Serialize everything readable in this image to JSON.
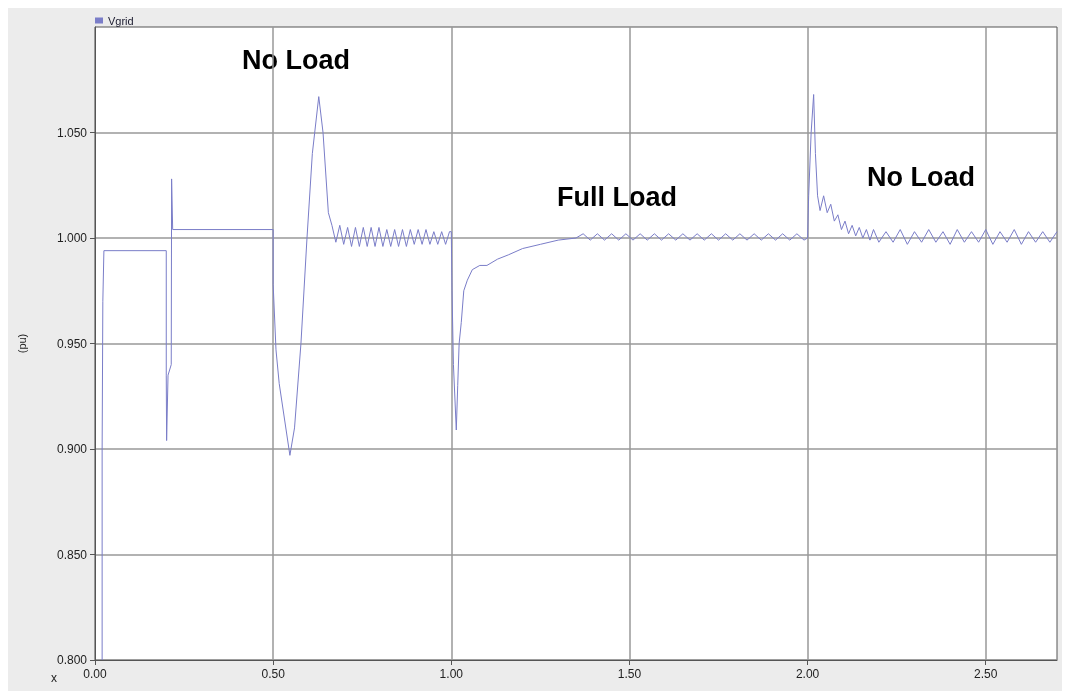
{
  "chart_data": {
    "type": "line",
    "xlabel": "x",
    "ylabel": "(pu)",
    "xlim": [
      0,
      2.7
    ],
    "ylim": [
      0.8,
      1.1
    ],
    "xticks": [
      {
        "value": 0,
        "label": "0.00"
      },
      {
        "value": 0.5,
        "label": "0.50"
      },
      {
        "value": 1,
        "label": "1.00"
      },
      {
        "value": 1.5,
        "label": "1.50"
      },
      {
        "value": 2,
        "label": "2.00"
      },
      {
        "value": 2.5,
        "label": "2.50"
      }
    ],
    "yticks": [
      {
        "value": 0.8,
        "label": "0.800"
      },
      {
        "value": 0.85,
        "label": "0.850"
      },
      {
        "value": 0.9,
        "label": "0.900"
      },
      {
        "value": 0.95,
        "label": "0.950"
      },
      {
        "value": 1,
        "label": "1.000"
      },
      {
        "value": 1.05,
        "label": "1.050"
      }
    ],
    "grid": true,
    "legend": "top left",
    "marker": "none",
    "line_style": "solid",
    "annotations": [
      "No Load",
      "Full Load",
      "No Load"
    ],
    "series": [
      {
        "name": "Vgrid",
        "color": "#7a7dc8",
        "x": [
          0.02,
          0.02,
          0.022,
          0.025,
          0.2,
          0.2,
          0.201,
          0.205,
          0.214,
          0.215,
          0.218,
          0.5,
          0.5,
          0.508,
          0.517,
          0.547,
          0.56,
          0.578,
          0.595,
          0.61,
          0.628,
          0.64,
          0.655,
          0.665,
          0.676,
          0.687,
          0.698,
          0.709,
          0.72,
          0.731,
          0.742,
          0.753,
          0.764,
          0.775,
          0.786,
          0.797,
          0.808,
          0.819,
          0.83,
          0.841,
          0.852,
          0.863,
          0.874,
          0.885,
          0.896,
          0.907,
          0.918,
          0.929,
          0.94,
          0.951,
          0.962,
          0.973,
          0.984,
          0.995,
          1.0,
          1.002,
          1.006,
          1.014,
          1.018,
          1.022,
          1.028,
          1.035,
          1.045,
          1.059,
          1.08,
          1.1,
          1.13,
          1.16,
          1.2,
          1.25,
          1.3,
          1.35,
          1.37,
          1.39,
          1.41,
          1.43,
          1.45,
          1.47,
          1.49,
          1.51,
          1.53,
          1.55,
          1.57,
          1.59,
          1.61,
          1.63,
          1.65,
          1.67,
          1.69,
          1.71,
          1.73,
          1.75,
          1.77,
          1.79,
          1.81,
          1.83,
          1.85,
          1.87,
          1.89,
          1.91,
          1.93,
          1.95,
          1.97,
          1.99,
          2.0,
          2.003,
          2.01,
          2.017,
          2.022,
          2.028,
          2.035,
          2.045,
          2.055,
          2.065,
          2.075,
          2.085,
          2.095,
          2.105,
          2.115,
          2.125,
          2.135,
          2.145,
          2.155,
          2.165,
          2.175,
          2.185,
          2.2,
          2.22,
          2.24,
          2.26,
          2.28,
          2.3,
          2.32,
          2.34,
          2.36,
          2.38,
          2.4,
          2.42,
          2.44,
          2.46,
          2.48,
          2.5,
          2.52,
          2.54,
          2.56,
          2.58,
          2.6,
          2.62,
          2.64,
          2.66,
          2.68,
          2.7
        ],
        "values": [
          0.8,
          0.9,
          0.97,
          0.994,
          0.994,
          0.935,
          0.904,
          0.935,
          0.94,
          1.028,
          1.004,
          1.004,
          0.978,
          0.947,
          0.931,
          0.897,
          0.91,
          0.95,
          1.0,
          1.04,
          1.067,
          1.05,
          1.012,
          1.006,
          0.998,
          1.006,
          0.997,
          1.005,
          0.996,
          1.005,
          0.996,
          1.005,
          0.996,
          1.005,
          0.996,
          1.005,
          0.996,
          1.004,
          0.996,
          1.004,
          0.996,
          1.004,
          0.996,
          1.004,
          0.997,
          1.004,
          0.997,
          1.004,
          0.997,
          1.003,
          0.997,
          1.003,
          0.997,
          1.003,
          1.003,
          0.975,
          0.94,
          0.909,
          0.93,
          0.95,
          0.96,
          0.975,
          0.98,
          0.985,
          0.987,
          0.987,
          0.99,
          0.992,
          0.995,
          0.997,
          0.999,
          1.0,
          1.002,
          0.999,
          1.002,
          0.999,
          1.002,
          0.999,
          1.002,
          0.999,
          1.002,
          0.999,
          1.002,
          0.999,
          1.002,
          0.999,
          1.002,
          0.999,
          1.002,
          0.999,
          1.002,
          0.999,
          1.002,
          0.999,
          1.002,
          0.999,
          1.002,
          0.999,
          1.002,
          0.999,
          1.002,
          0.999,
          1.002,
          0.999,
          1.0,
          1.02,
          1.05,
          1.068,
          1.04,
          1.02,
          1.013,
          1.02,
          1.012,
          1.016,
          1.008,
          1.011,
          1.004,
          1.008,
          1.002,
          1.006,
          1.001,
          1.005,
          1.0,
          1.004,
          0.999,
          1.004,
          0.998,
          1.003,
          0.998,
          1.004,
          0.997,
          1.003,
          0.998,
          1.004,
          0.998,
          1.003,
          0.997,
          1.004,
          0.998,
          1.003,
          0.998,
          1.004,
          0.997,
          1.003,
          0.998,
          1.004,
          0.997,
          1.003,
          0.998,
          1.003,
          0.998,
          1.003
        ]
      }
    ]
  }
}
